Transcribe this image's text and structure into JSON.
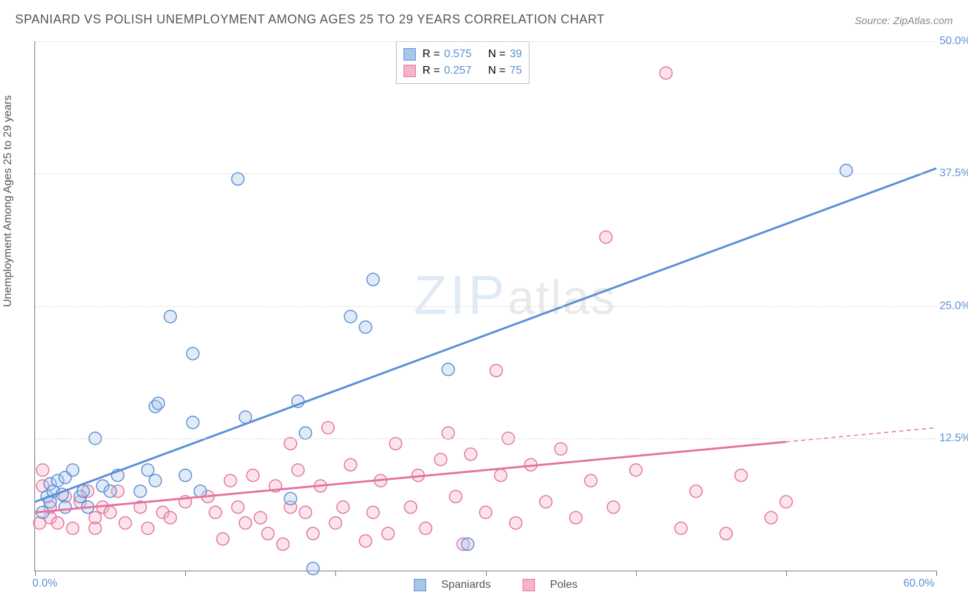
{
  "chart": {
    "type": "scatter",
    "title": "SPANIARD VS POLISH UNEMPLOYMENT AMONG AGES 25 TO 29 YEARS CORRELATION CHART",
    "source_prefix": "Source:",
    "source_name": "ZipAtlas.com",
    "y_axis_label": "Unemployment Among Ages 25 to 29 years",
    "watermark_a": "ZIP",
    "watermark_b": "atlas",
    "background_color": "#ffffff",
    "grid_color": "#dddddd",
    "axis_color": "#777777",
    "tick_label_color": "#5b8fd6",
    "title_color": "#555555",
    "title_fontsize": 18,
    "label_fontsize": 16,
    "xlim": [
      0,
      60
    ],
    "ylim": [
      0,
      50
    ],
    "x_ticks": [
      0,
      10,
      20,
      30,
      40,
      50,
      60
    ],
    "x_tick_labels": {
      "0": "0.0%",
      "60": "60.0%"
    },
    "y_ticks": [
      12.5,
      25.0,
      37.5,
      50.0
    ],
    "y_tick_labels": [
      "12.5%",
      "25.0%",
      "37.5%",
      "50.0%"
    ],
    "marker_radius": 9,
    "marker_fill_opacity": 0.35,
    "marker_stroke_width": 1.5,
    "trend_line_width": 3
  },
  "series": {
    "spaniards": {
      "label": "Spaniards",
      "color": "#5b8fd6",
      "fill": "#a9c5ea",
      "R": "0.575",
      "N": "39",
      "trend": {
        "x1": 0,
        "y1": 6.5,
        "x2": 60,
        "y2": 38.0
      },
      "points": [
        [
          0.5,
          5.5
        ],
        [
          0.8,
          7.0
        ],
        [
          1.0,
          8.2
        ],
        [
          1.0,
          6.5
        ],
        [
          1.2,
          7.5
        ],
        [
          1.5,
          8.5
        ],
        [
          1.8,
          7.2
        ],
        [
          2.0,
          8.8
        ],
        [
          2.0,
          6.0
        ],
        [
          2.5,
          9.5
        ],
        [
          3.0,
          7.0
        ],
        [
          3.2,
          7.5
        ],
        [
          3.5,
          6.0
        ],
        [
          4.0,
          12.5
        ],
        [
          4.5,
          8.0
        ],
        [
          5.0,
          7.5
        ],
        [
          5.5,
          9.0
        ],
        [
          7.0,
          7.5
        ],
        [
          7.5,
          9.5
        ],
        [
          8.0,
          8.5
        ],
        [
          8.0,
          15.5
        ],
        [
          8.2,
          15.8
        ],
        [
          9.0,
          24.0
        ],
        [
          10.0,
          9.0
        ],
        [
          10.5,
          20.5
        ],
        [
          10.5,
          14.0
        ],
        [
          11.0,
          7.5
        ],
        [
          13.5,
          37.0
        ],
        [
          14.0,
          14.5
        ],
        [
          17.0,
          6.8
        ],
        [
          17.5,
          16.0
        ],
        [
          18.0,
          13.0
        ],
        [
          18.5,
          0.2
        ],
        [
          21.0,
          24.0
        ],
        [
          22.0,
          23.0
        ],
        [
          22.5,
          27.5
        ],
        [
          27.5,
          19.0
        ],
        [
          28.8,
          2.5
        ],
        [
          54.0,
          37.8
        ]
      ]
    },
    "poles": {
      "label": "Poles",
      "color": "#e6739f",
      "fill": "#f4b3c9",
      "R": "0.257",
      "N": "75",
      "trend": {
        "x1": 0,
        "y1": 5.5,
        "x2": 60,
        "y2": 13.5
      },
      "trend_solid_end": 50,
      "points": [
        [
          0.3,
          4.5
        ],
        [
          0.5,
          8.0
        ],
        [
          0.5,
          9.5
        ],
        [
          1.0,
          5.0
        ],
        [
          1.0,
          6.0
        ],
        [
          1.5,
          4.5
        ],
        [
          2.0,
          7.0
        ],
        [
          2.5,
          4.0
        ],
        [
          3.0,
          6.5
        ],
        [
          3.5,
          7.5
        ],
        [
          4.0,
          5.0
        ],
        [
          4.0,
          4.0
        ],
        [
          4.5,
          6.0
        ],
        [
          5.0,
          5.5
        ],
        [
          5.5,
          7.5
        ],
        [
          6.0,
          4.5
        ],
        [
          7.0,
          6.0
        ],
        [
          7.5,
          4.0
        ],
        [
          8.5,
          5.5
        ],
        [
          9.0,
          5.0
        ],
        [
          10.0,
          6.5
        ],
        [
          11.5,
          7.0
        ],
        [
          12.0,
          5.5
        ],
        [
          12.5,
          3.0
        ],
        [
          13.0,
          8.5
        ],
        [
          13.5,
          6.0
        ],
        [
          14.0,
          4.5
        ],
        [
          14.5,
          9.0
        ],
        [
          15.0,
          5.0
        ],
        [
          15.5,
          3.5
        ],
        [
          16.0,
          8.0
        ],
        [
          16.5,
          2.5
        ],
        [
          17.0,
          6.0
        ],
        [
          17.0,
          12.0
        ],
        [
          17.5,
          9.5
        ],
        [
          18.0,
          5.5
        ],
        [
          18.5,
          3.5
        ],
        [
          19.0,
          8.0
        ],
        [
          19.5,
          13.5
        ],
        [
          20.0,
          4.5
        ],
        [
          20.5,
          6.0
        ],
        [
          21.0,
          10.0
        ],
        [
          22.0,
          2.8
        ],
        [
          22.5,
          5.5
        ],
        [
          23.0,
          8.5
        ],
        [
          23.5,
          3.5
        ],
        [
          24.0,
          12.0
        ],
        [
          25.0,
          6.0
        ],
        [
          25.5,
          9.0
        ],
        [
          26.0,
          4.0
        ],
        [
          27.0,
          10.5
        ],
        [
          27.5,
          13.0
        ],
        [
          28.0,
          7.0
        ],
        [
          28.5,
          2.5
        ],
        [
          29.0,
          11.0
        ],
        [
          30.0,
          5.5
        ],
        [
          30.7,
          18.9
        ],
        [
          31.0,
          9.0
        ],
        [
          31.5,
          12.5
        ],
        [
          32.0,
          4.5
        ],
        [
          33.0,
          10.0
        ],
        [
          34.0,
          6.5
        ],
        [
          35.0,
          11.5
        ],
        [
          36.0,
          5.0
        ],
        [
          37.0,
          8.5
        ],
        [
          38.0,
          31.5
        ],
        [
          38.5,
          6.0
        ],
        [
          40.0,
          9.5
        ],
        [
          42.0,
          47.0
        ],
        [
          43.0,
          4.0
        ],
        [
          44.0,
          7.5
        ],
        [
          46.0,
          3.5
        ],
        [
          47.0,
          9.0
        ],
        [
          49.0,
          5.0
        ],
        [
          50.0,
          6.5
        ]
      ]
    }
  },
  "stat_legend": {
    "R_label": "R =",
    "N_label": "N =",
    "text_color": "#555555",
    "value_color": "#5b8fd6"
  }
}
